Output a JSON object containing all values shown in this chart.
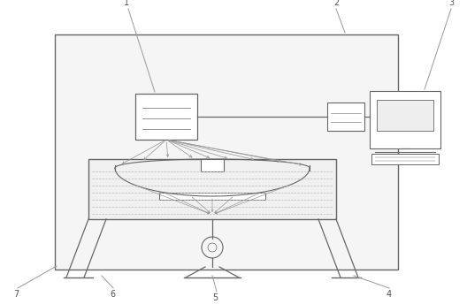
{
  "bg_color": "#ffffff",
  "line_color": "#999999",
  "dark_line": "#666666",
  "label_color": "#555555",
  "fig_width": 5.28,
  "fig_height": 3.44,
  "dpi": 100
}
